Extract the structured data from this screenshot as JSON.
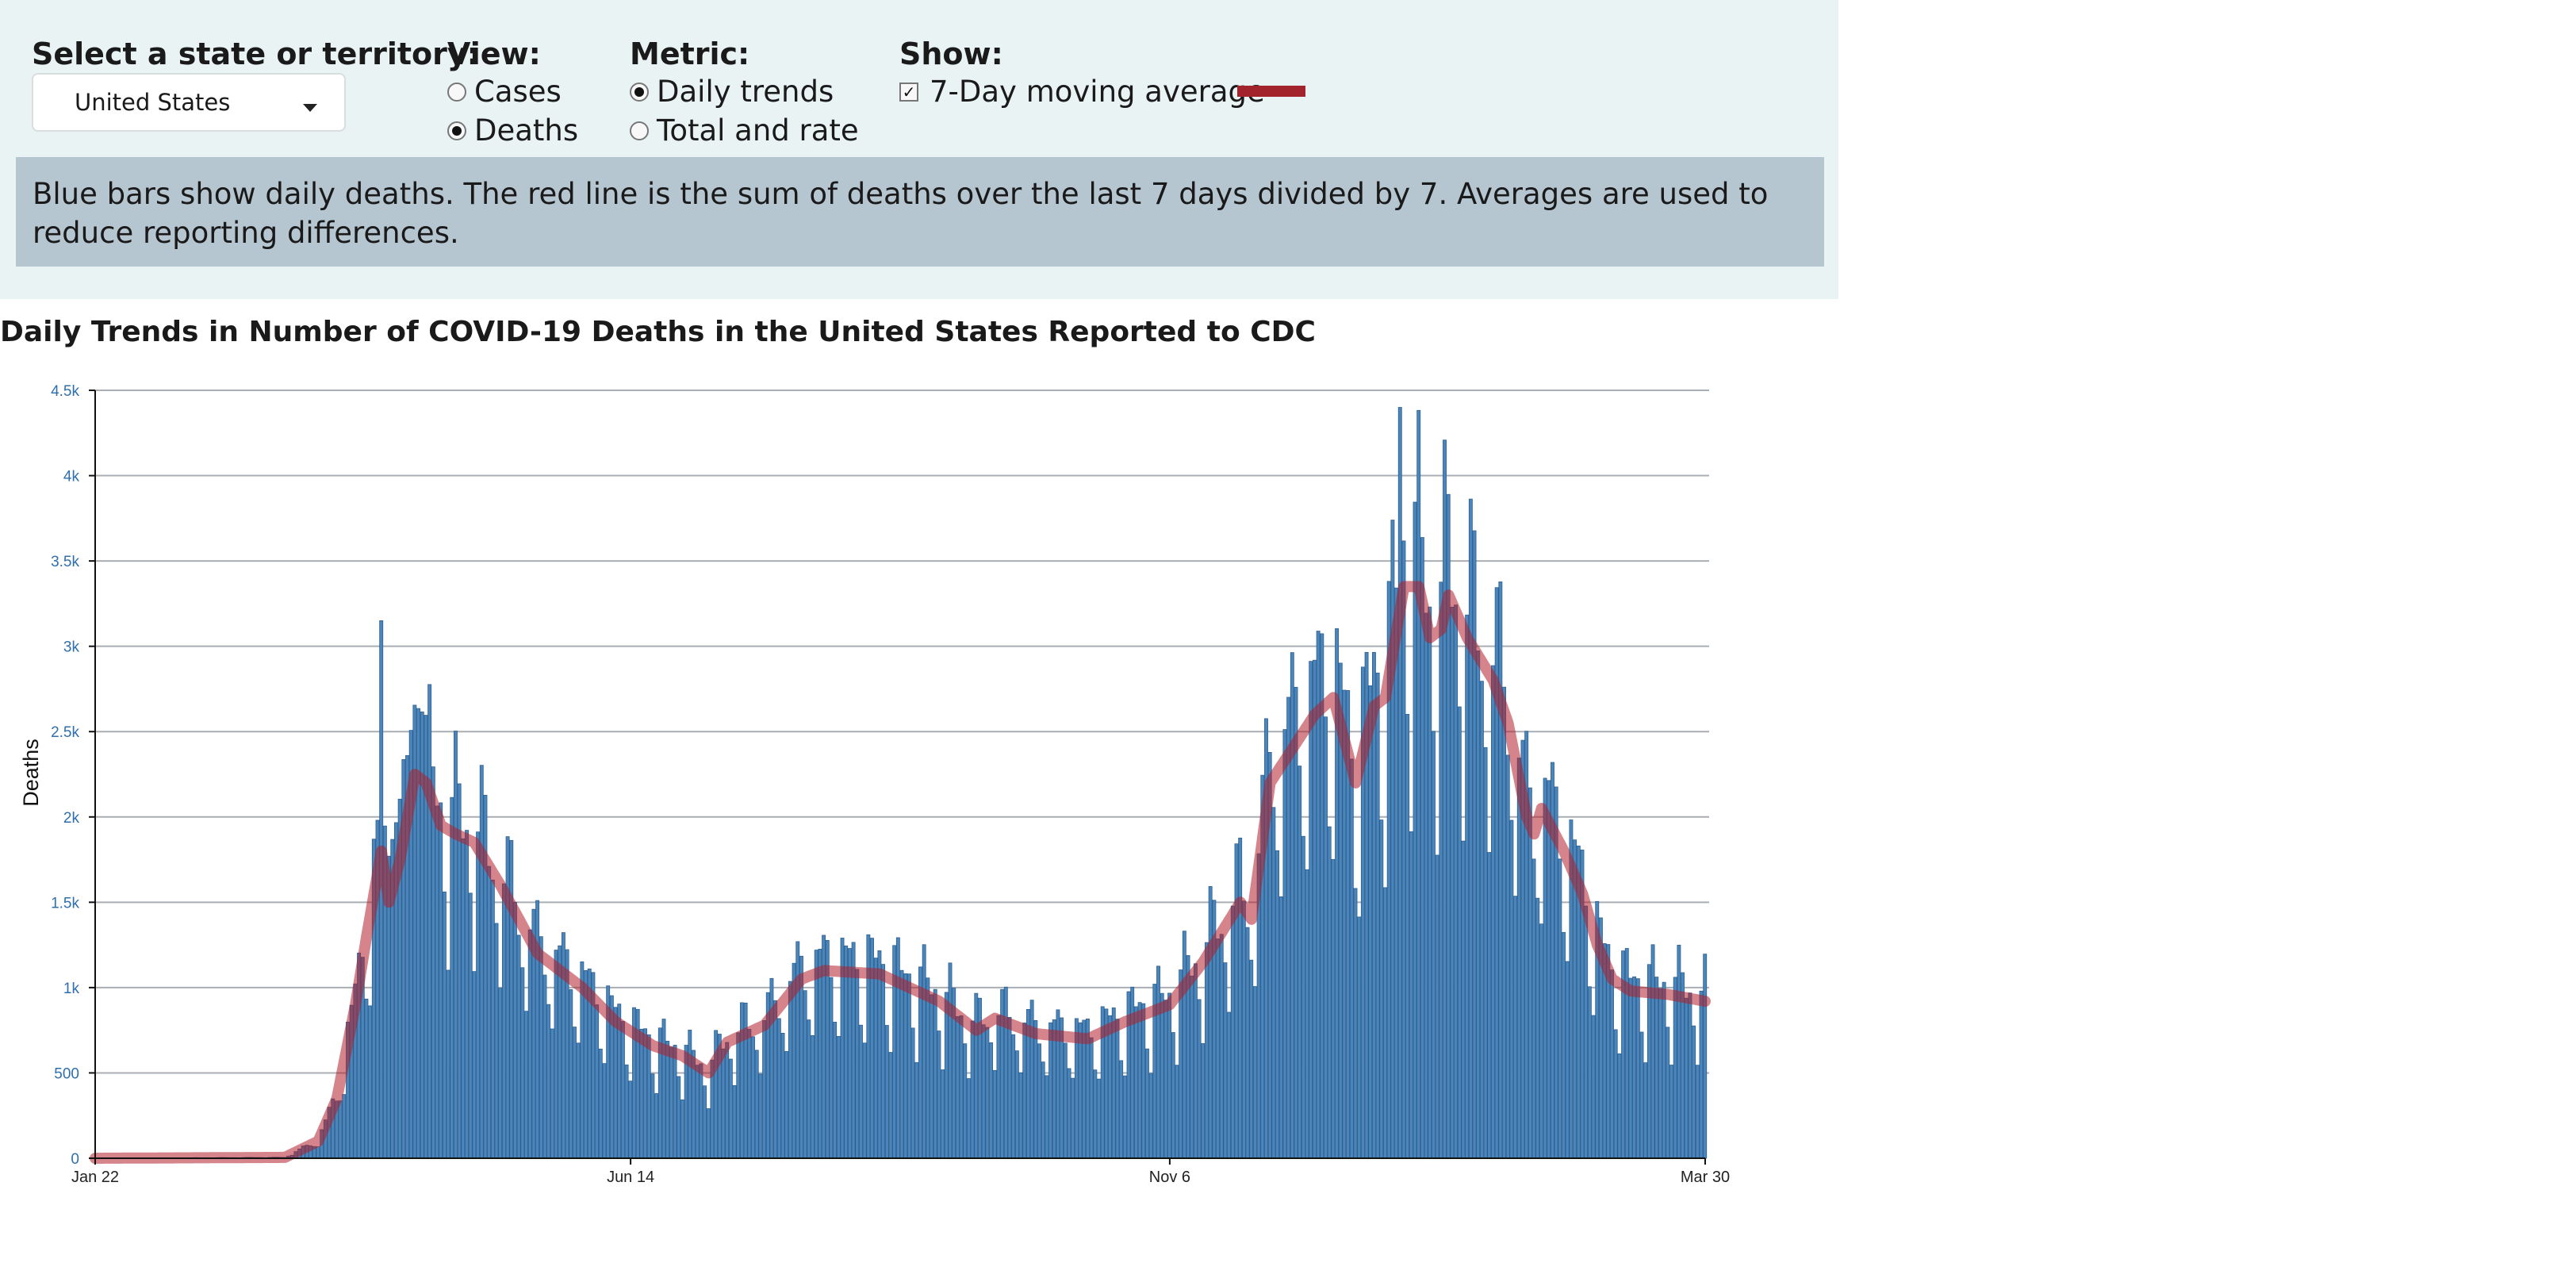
{
  "controls": {
    "state_label": "Select a state or territory:",
    "state_value": "United States",
    "view_label": "View:",
    "view_options": [
      "Cases",
      "Deaths"
    ],
    "view_selected": "Deaths",
    "metric_label": "Metric:",
    "metric_options": [
      "Daily trends",
      "Total and rate"
    ],
    "metric_selected": "Daily trends",
    "show_label": "Show:",
    "show_option": "7-Day moving average",
    "show_checked": true,
    "legend_color": "#a3232c"
  },
  "description": "Blue bars show daily deaths. The red line is the sum of deaths over the last 7 days divided by 7. Averages are used to reduce reporting differences.",
  "chart_data": {
    "type": "bar",
    "title": "Daily Trends in Number of COVID-19 Deaths in the United States Reported to CDC",
    "xlabel": "",
    "ylabel": "Deaths",
    "ylim": [
      0,
      4500
    ],
    "y_ticks": [
      0,
      500,
      1000,
      1500,
      2000,
      2500,
      3000,
      3500,
      4000,
      4500
    ],
    "y_tick_labels": [
      "0",
      "500",
      "1k",
      "1.5k",
      "2k",
      "2.5k",
      "3k",
      "3.5k",
      "4k",
      "4.5k"
    ],
    "x_tick_labels": [
      "Jan 22",
      "Jun 14",
      "Nov 6",
      "Mar 30"
    ],
    "x_start": "2020-01-22",
    "x_end": "2021-03-30",
    "grid": true,
    "bar_color": "#4a86bb",
    "line_color": "#b01f2a",
    "series": [
      {
        "name": "Deaths",
        "kind": "bar",
        "note": "daily values"
      },
      {
        "name": "7-Day moving average",
        "kind": "line",
        "points": [
          [
            "2020-01-22",
            0
          ],
          [
            "2020-03-13",
            5
          ],
          [
            "2020-03-22",
            100
          ],
          [
            "2020-03-27",
            350
          ],
          [
            "2020-04-01",
            900
          ],
          [
            "2020-04-04",
            1300
          ],
          [
            "2020-04-08",
            1800
          ],
          [
            "2020-04-10",
            1500
          ],
          [
            "2020-04-13",
            1750
          ],
          [
            "2020-04-17",
            2250
          ],
          [
            "2020-04-20",
            2200
          ],
          [
            "2020-04-24",
            1950
          ],
          [
            "2020-04-28",
            1900
          ],
          [
            "2020-05-03",
            1850
          ],
          [
            "2020-05-10",
            1600
          ],
          [
            "2020-05-20",
            1200
          ],
          [
            "2020-06-01",
            1000
          ],
          [
            "2020-06-10",
            800
          ],
          [
            "2020-06-20",
            660
          ],
          [
            "2020-06-28",
            600
          ],
          [
            "2020-07-05",
            500
          ],
          [
            "2020-07-10",
            680
          ],
          [
            "2020-07-20",
            780
          ],
          [
            "2020-07-30",
            1050
          ],
          [
            "2020-08-05",
            1100
          ],
          [
            "2020-08-20",
            1080
          ],
          [
            "2020-09-05",
            920
          ],
          [
            "2020-09-15",
            750
          ],
          [
            "2020-09-20",
            820
          ],
          [
            "2020-10-01",
            730
          ],
          [
            "2020-10-15",
            700
          ],
          [
            "2020-10-25",
            800
          ],
          [
            "2020-11-06",
            900
          ],
          [
            "2020-11-15",
            1150
          ],
          [
            "2020-11-25",
            1500
          ],
          [
            "2020-11-28",
            1400
          ],
          [
            "2020-12-03",
            2200
          ],
          [
            "2020-12-15",
            2600
          ],
          [
            "2020-12-20",
            2700
          ],
          [
            "2020-12-26",
            2200
          ],
          [
            "2020-12-31",
            2650
          ],
          [
            "2021-01-03",
            2700
          ],
          [
            "2021-01-08",
            3350
          ],
          [
            "2021-01-12",
            3350
          ],
          [
            "2021-01-15",
            3050
          ],
          [
            "2021-01-18",
            3100
          ],
          [
            "2021-01-20",
            3300
          ],
          [
            "2021-01-25",
            3050
          ],
          [
            "2021-02-01",
            2800
          ],
          [
            "2021-02-05",
            2550
          ],
          [
            "2021-02-10",
            2000
          ],
          [
            "2021-02-12",
            1900
          ],
          [
            "2021-02-14",
            2050
          ],
          [
            "2021-02-20",
            1800
          ],
          [
            "2021-02-25",
            1550
          ],
          [
            "2021-03-01",
            1250
          ],
          [
            "2021-03-05",
            1050
          ],
          [
            "2021-03-10",
            980
          ],
          [
            "2021-03-20",
            960
          ],
          [
            "2021-03-30",
            920
          ]
        ]
      }
    ]
  }
}
